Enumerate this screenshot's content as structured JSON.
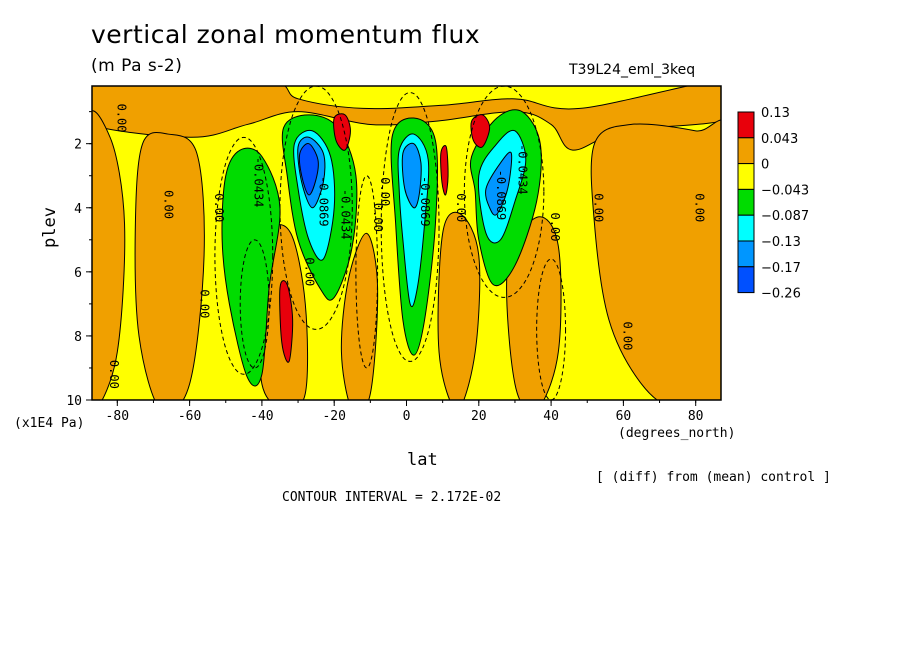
{
  "header": {
    "title": "vertical zonal momentum flux",
    "units": "(m Pa s-2)",
    "run_name": "T39L24_eml_3keq"
  },
  "footer": {
    "diff_note": "[ (diff) from (mean) control ]",
    "contour_interval": "CONTOUR INTERVAL = 2.172E-02"
  },
  "colors": {
    "c_pos_high": "#e8000b",
    "c_pos_low": "#f0a000",
    "c_neg_low": "#ffff00",
    "c_neg_med": "#00dc00",
    "c_neg_high": "#00ffff",
    "c_neg_vhigh": "#0096ff",
    "c_neg_max": "#0050ff"
  },
  "chart_data": {
    "type": "heatmap",
    "title": "vertical zonal momentum flux",
    "subtitle": "(m Pa s-2)",
    "xlabel": "lat",
    "xunit": "(degrees_north)",
    "ylabel": "plev",
    "yunit": "(x1E4 Pa)",
    "xlim": [
      -87,
      87
    ],
    "ylim": [
      10,
      0.2
    ],
    "x_ticks": [
      -80,
      -60,
      -40,
      -20,
      0,
      20,
      40,
      60,
      80
    ],
    "y_ticks": [
      2,
      4,
      6,
      8,
      10
    ],
    "legend_levels": [
      "0.13",
      "0.043",
      "0",
      "−0.043",
      "−0.087",
      "−0.13",
      "−0.17",
      "−0.26"
    ],
    "legend_colors": [
      "#e8000b",
      "#f0a000",
      "#ffff00",
      "#00dc00",
      "#00ffff",
      "#0096ff",
      "#0050ff"
    ],
    "contour_labels": [
      {
        "text": "0.00",
        "lat": -80,
        "plev": 1.2
      },
      {
        "text": "0.00",
        "lat": -67,
        "plev": 3.9
      },
      {
        "text": "0.00",
        "lat": -82,
        "plev": 9.2
      },
      {
        "text": "0.00",
        "lat": -53,
        "plev": 4.0
      },
      {
        "text": "0.00",
        "lat": -57,
        "plev": 7.0
      },
      {
        "text": "-0.0434",
        "lat": -42,
        "plev": 3.2
      },
      {
        "text": "0.00",
        "lat": -28,
        "plev": 6.0
      },
      {
        "text": "-0.0869",
        "lat": -24,
        "plev": 3.8
      },
      {
        "text": "-0.0434",
        "lat": -18,
        "plev": 4.2
      },
      {
        "text": "0.00",
        "lat": -9,
        "plev": 4.3
      },
      {
        "text": "0.00",
        "lat": -7,
        "plev": 3.5
      },
      {
        "text": "-0.0869",
        "lat": 4,
        "plev": 3.8
      },
      {
        "text": "0.00",
        "lat": 14,
        "plev": 4.0
      },
      {
        "text": "-0.0869",
        "lat": 25,
        "plev": 3.6
      },
      {
        "text": "-0.0434",
        "lat": 31,
        "plev": 2.8
      },
      {
        "text": "0.00",
        "lat": 40,
        "plev": 4.6
      },
      {
        "text": "0.00",
        "lat": 52,
        "plev": 4.0
      },
      {
        "text": "0.00",
        "lat": 60,
        "plev": 8.0
      },
      {
        "text": "0.00",
        "lat": 80,
        "plev": 4.0
      }
    ],
    "features": [
      {
        "sign": "negative",
        "level": "-0.26",
        "lat": -25,
        "plev": 2.9
      },
      {
        "sign": "negative",
        "level": "-0.17",
        "lat": 1,
        "plev": 3.0
      },
      {
        "sign": "negative",
        "level": "-0.13",
        "lat": 24,
        "plev": 3.2
      },
      {
        "sign": "negative",
        "level": "-0.087",
        "lat": -42,
        "plev": 5.0
      },
      {
        "sign": "positive",
        "level": "0.13",
        "lat": -18,
        "plev": 1.6
      },
      {
        "sign": "positive",
        "level": "0.13",
        "lat": 20,
        "plev": 1.6
      },
      {
        "sign": "positive",
        "level": "0.13",
        "lat": 10,
        "plev": 2.7
      },
      {
        "sign": "positive",
        "level": "0.13",
        "lat": -33,
        "plev": 7.5
      }
    ]
  }
}
